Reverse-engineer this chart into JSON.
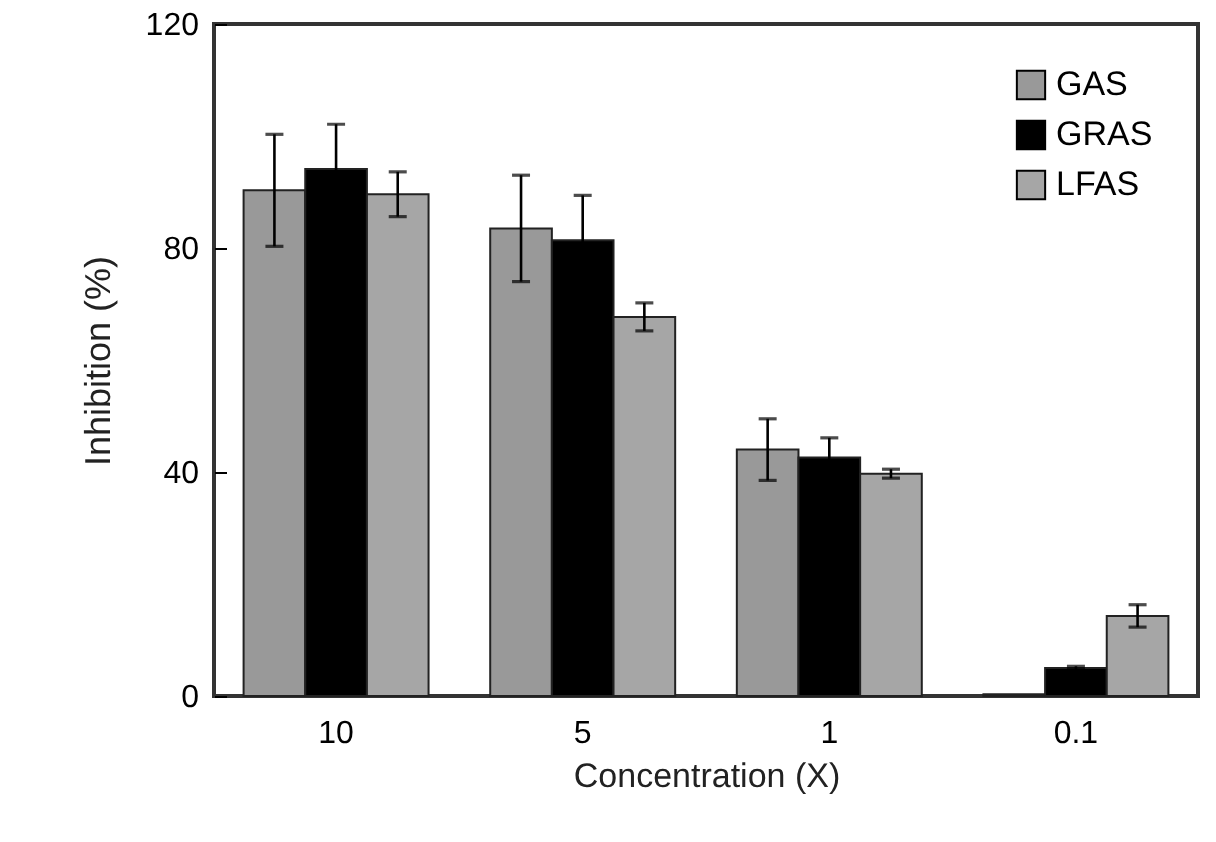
{
  "chart_data": {
    "type": "bar",
    "xlabel": "Concentration (X)",
    "ylabel": "Inhibition (%)",
    "categories": [
      "10",
      "5",
      "1",
      "0.1"
    ],
    "series": [
      {
        "name": "GAS",
        "color": "#999999",
        "values": [
          90.3,
          83.5,
          44.0,
          0.3
        ],
        "errors": [
          10,
          9.5,
          5.5,
          null
        ]
      },
      {
        "name": "GRAS",
        "color": "#000000",
        "values": [
          94.1,
          81.4,
          42.6,
          5.0
        ],
        "errors": [
          8,
          8,
          3.5,
          0.3
        ]
      },
      {
        "name": "LFAS",
        "color": "#a6a6a6",
        "values": [
          89.6,
          67.7,
          39.7,
          14.3
        ],
        "errors": [
          4,
          2.5,
          0.8,
          2
        ]
      }
    ],
    "ylim": [
      0,
      120
    ],
    "yticks": [
      0,
      40,
      80,
      120
    ],
    "grid": false,
    "legend": "top right"
  }
}
